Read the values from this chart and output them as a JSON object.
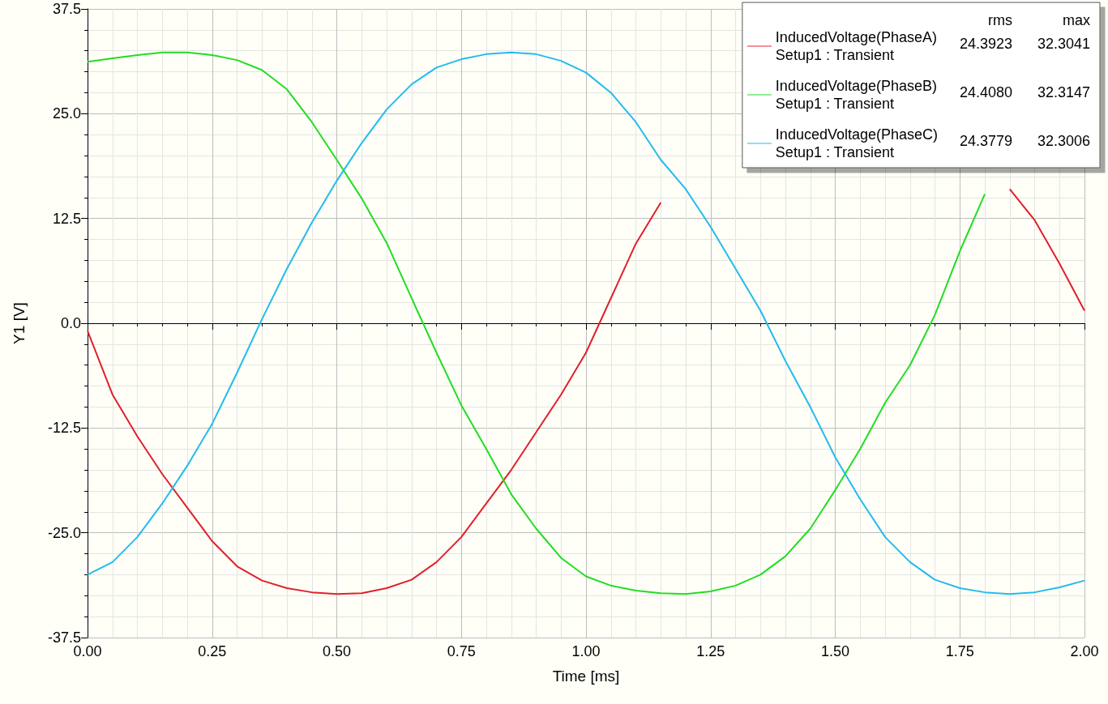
{
  "chart_data": {
    "type": "line",
    "xlabel": "Time [ms]",
    "ylabel": "Y1 [V]",
    "x": [
      0,
      0.05,
      0.1,
      0.15,
      0.2,
      0.25,
      0.3,
      0.35,
      0.4,
      0.45,
      0.5,
      0.55,
      0.6,
      0.65,
      0.7,
      0.75,
      0.8,
      0.85,
      0.9,
      0.95,
      1.0,
      1.05,
      1.1,
      1.15,
      1.2,
      1.25,
      1.3,
      1.35,
      1.4,
      1.45,
      1.5,
      1.55,
      1.6,
      1.65,
      1.7,
      1.75,
      1.8,
      1.85,
      1.9,
      1.95,
      2.0
    ],
    "series": [
      {
        "name": "InducedVoltage(PhaseA)\nSetup1 : Transient",
        "color": "#e0202a",
        "values": [
          -0.9,
          -8.5,
          -13.5,
          -18,
          -22,
          -26,
          -29,
          -30.7,
          -31.6,
          -32.1,
          -32.3,
          -32.2,
          -31.6,
          -30.6,
          -28.5,
          -25.5,
          -21.5,
          -17.5,
          -13,
          -8.5,
          -3.5,
          3,
          9.5,
          14.4,
          null,
          null,
          null,
          null,
          null,
          null,
          null,
          null,
          null,
          null,
          null,
          null,
          null,
          16,
          12.3,
          7.1,
          1.5
        ]
      },
      {
        "name": "InducedVoltage(PhaseB)\nSetup1 : Transient",
        "color": "#22dd22",
        "values": [
          31.2,
          31.6,
          32,
          32.3,
          32.3,
          32,
          31.4,
          30.2,
          27.9,
          24,
          19.5,
          14.9,
          9.6,
          3,
          -3.5,
          -9.8,
          -15,
          -20.4,
          -24.5,
          -28,
          -30.2,
          -31.3,
          -31.9,
          -32.2,
          -32.3,
          -32,
          -31.3,
          -30,
          -27.8,
          -24.5,
          -19.9,
          -15,
          -9.5,
          -5,
          1,
          8.6,
          15.4,
          null,
          null,
          null,
          null
        ]
      },
      {
        "name": "InducedVoltage(PhaseC)\nSetup1 : Transient",
        "color": "#22bbee",
        "values": [
          -30,
          -28.5,
          -25.5,
          -21.5,
          -17,
          -12,
          -5.9,
          0.5,
          6.5,
          12,
          17,
          21.5,
          25.5,
          28.5,
          30.5,
          31.5,
          32.1,
          32.3,
          32.1,
          31.3,
          29.9,
          27.5,
          24,
          19.5,
          16,
          11.5,
          6.5,
          1.5,
          -4.5,
          -10,
          -16,
          -21,
          -25.5,
          -28.5,
          -30.6,
          -31.6,
          -32.1,
          -32.3,
          -32.1,
          -31.5,
          -30.7
        ]
      }
    ],
    "xlim": [
      0,
      2
    ],
    "xticks": [
      {
        "value": 0,
        "label": "0.00"
      },
      {
        "value": 0.25,
        "label": "0.25"
      },
      {
        "value": 0.5,
        "label": "0.50"
      },
      {
        "value": 0.75,
        "label": "0.75"
      },
      {
        "value": 1,
        "label": "1.00"
      },
      {
        "value": 1.25,
        "label": "1.25"
      },
      {
        "value": 1.5,
        "label": "1.50"
      },
      {
        "value": 1.75,
        "label": "1.75"
      },
      {
        "value": 2,
        "label": "2.00"
      }
    ],
    "ylim": [
      -37.5,
      37.5
    ],
    "yticks": [
      -37.5,
      {
        "value": -25,
        "label": "-25.0"
      },
      -12.5,
      {
        "value": 0,
        "label": "0.0"
      },
      12.5,
      {
        "value": 25,
        "label": "25.0"
      },
      37.5
    ],
    "annotations": [
      "rms",
      "max",
      "24.3923",
      "32.3041",
      "24.4080",
      "32.3147",
      "24.3779",
      "32.3006"
    ],
    "grid": true,
    "legend": "top right",
    "marker": "none",
    "line_style": "solid"
  }
}
